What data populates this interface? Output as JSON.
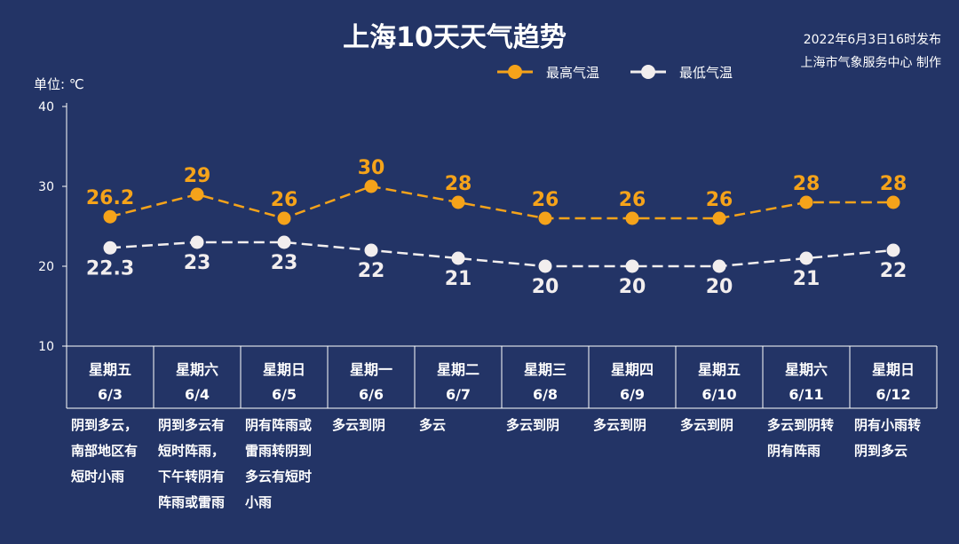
{
  "header": {
    "title": "上海10天天气趋势",
    "publish_time": "2022年6月3日16时发布",
    "publisher": "上海市气象服务中心 制作"
  },
  "colors": {
    "background": "#233466",
    "high": "#f5a31a",
    "low": "#f2eeee"
  },
  "chart_data": {
    "type": "line",
    "title": "上海10天天气趋势",
    "ylabel": "单位: ℃",
    "ylim": [
      10,
      40
    ],
    "yticks": [
      10,
      20,
      30,
      40
    ],
    "grid": false,
    "legend_position": "top-right",
    "categories": [
      "6/3",
      "6/4",
      "6/5",
      "6/6",
      "6/7",
      "6/8",
      "6/9",
      "6/10",
      "6/11",
      "6/12"
    ],
    "weekdays": [
      "星期五",
      "星期六",
      "星期日",
      "星期一",
      "星期二",
      "星期三",
      "星期四",
      "星期五",
      "星期六",
      "星期日"
    ],
    "series": [
      {
        "name": "最高气温",
        "values": [
          26.2,
          29,
          26,
          30,
          28,
          26,
          26,
          26,
          28,
          28
        ],
        "color": "#f5a31a"
      },
      {
        "name": "最低气温",
        "values": [
          22.3,
          23,
          23,
          22,
          21,
          20,
          20,
          20,
          21,
          22
        ],
        "color": "#f2eeee"
      }
    ],
    "weather": [
      [
        "阴到多云，",
        "南部地区有",
        "短时小雨"
      ],
      [
        "阴到多云有",
        "短时阵雨，",
        "下午转阴有",
        "阵雨或雷雨"
      ],
      [
        "阴有阵雨或",
        "雷雨转阴到",
        "多云有短时",
        "小雨"
      ],
      [
        "多云到阴"
      ],
      [
        "多云"
      ],
      [
        "多云到阴"
      ],
      [
        "多云到阴"
      ],
      [
        "多云到阴"
      ],
      [
        "多云到阴转",
        "阴有阵雨"
      ],
      [
        "阴有小雨转",
        "阴到多云"
      ]
    ]
  }
}
